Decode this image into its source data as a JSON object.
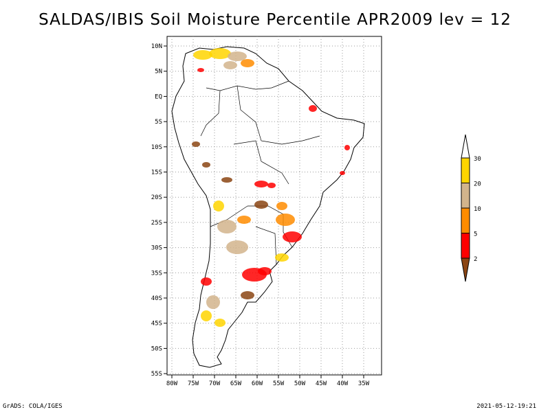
{
  "title": "SALDAS/IBIS Soil Moisture Percentile APR2009 lev = 12",
  "map": {
    "lat_labels": [
      "10N",
      "5N",
      "EQ",
      "5S",
      "10S",
      "15S",
      "20S",
      "25S",
      "30S",
      "35S",
      "40S",
      "45S",
      "50S",
      "55S"
    ],
    "lon_labels": [
      "80W",
      "75W",
      "70W",
      "65W",
      "60W",
      "55W",
      "50W",
      "45W",
      "40W",
      "35W"
    ]
  },
  "legend": {
    "bins": [
      {
        "label": "30",
        "color": "#ffffff"
      },
      {
        "label": "20",
        "color": "#ffd500"
      },
      {
        "label": "10",
        "color": "#d2b48c"
      },
      {
        "label": "5",
        "color": "#ff8c00"
      },
      {
        "label": "2",
        "color": "#ff0000"
      },
      {
        "label": "",
        "color": "#8b4513"
      }
    ]
  },
  "footer": {
    "left": "GrADS: COLA/IGES",
    "right": "2021-05-12-19:21"
  }
}
